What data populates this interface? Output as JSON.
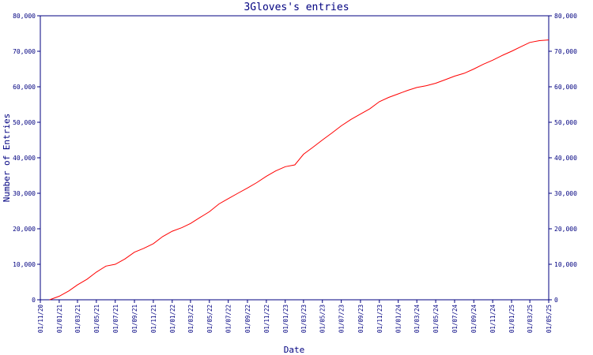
{
  "chart_data": {
    "type": "line",
    "title": "3Gloves's entries",
    "xlabel": "Date",
    "ylabel": "Number of Entries",
    "ylim": [
      0,
      80000
    ],
    "yticks": [
      {
        "value": 0,
        "label": "0"
      },
      {
        "value": 10000,
        "label": "10,000"
      },
      {
        "value": 20000,
        "label": "20,000"
      },
      {
        "value": 30000,
        "label": "30,000"
      },
      {
        "value": 40000,
        "label": "40,000"
      },
      {
        "value": 50000,
        "label": "50,000"
      },
      {
        "value": 60000,
        "label": "60,000"
      },
      {
        "value": 70000,
        "label": "70,000"
      },
      {
        "value": 80000,
        "label": "80,000"
      }
    ],
    "xticks": [
      "01/11/20",
      "01/01/21",
      "01/03/21",
      "01/05/21",
      "01/07/21",
      "01/09/21",
      "01/11/21",
      "01/01/22",
      "01/03/22",
      "01/05/22",
      "01/07/22",
      "01/09/22",
      "01/11/22",
      "01/01/23",
      "01/03/23",
      "01/05/23",
      "01/07/23",
      "01/09/23",
      "01/11/23",
      "01/01/24",
      "01/03/24",
      "01/05/24",
      "01/07/24",
      "01/09/24",
      "01/11/24",
      "01/01/25",
      "01/03/25",
      "01/05/25"
    ],
    "grid": false,
    "series": [
      {
        "color": "#ff0000",
        "x": [
          "2020-12-01",
          "2021-01-01",
          "2021-02-01",
          "2021-03-01",
          "2021-04-01",
          "2021-05-01",
          "2021-06-01",
          "2021-07-01",
          "2021-08-01",
          "2021-09-01",
          "2021-10-01",
          "2021-11-01",
          "2021-12-01",
          "2022-01-01",
          "2022-02-01",
          "2022-03-01",
          "2022-04-01",
          "2022-05-01",
          "2022-06-01",
          "2022-07-01",
          "2022-08-01",
          "2022-09-01",
          "2022-10-01",
          "2022-11-01",
          "2022-12-01",
          "2023-01-01",
          "2023-02-01",
          "2023-03-01",
          "2023-04-01",
          "2023-05-01",
          "2023-06-01",
          "2023-07-01",
          "2023-08-01",
          "2023-09-01",
          "2023-10-01",
          "2023-11-01",
          "2023-12-01",
          "2024-01-01",
          "2024-02-01",
          "2024-03-01",
          "2024-04-01",
          "2024-05-01",
          "2024-06-01",
          "2024-07-01",
          "2024-08-01",
          "2024-09-01",
          "2024-10-01",
          "2024-11-01",
          "2024-12-01",
          "2025-01-01",
          "2025-02-01",
          "2025-03-01",
          "2025-04-01",
          "2025-05-01"
        ],
        "y": [
          0,
          1000,
          2500,
          4200,
          5800,
          7800,
          9500,
          10000,
          11500,
          13400,
          14500,
          15800,
          17800,
          19300,
          20300,
          21500,
          23200,
          24800,
          27000,
          28500,
          30000,
          31500,
          33000,
          34800,
          36300,
          37500,
          38000,
          41000,
          43000,
          45000,
          47000,
          49000,
          50800,
          52300,
          53800,
          55800,
          57000,
          58000,
          59000,
          59800,
          60300,
          61000,
          62000,
          63000,
          63800,
          65000,
          66300,
          67500,
          68800,
          70000,
          71300,
          72500,
          73000,
          73200
        ]
      }
    ]
  }
}
